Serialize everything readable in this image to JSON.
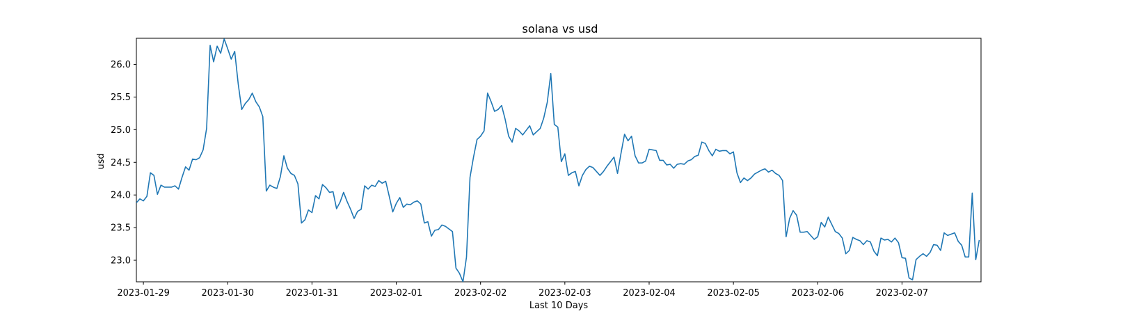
{
  "chart_data": {
    "type": "line",
    "title": "solana vs usd",
    "xlabel": "Last 10 Days",
    "ylabel": "usd",
    "x_start": "2023-01-29T00:00",
    "x_step_hours": 1,
    "xlim": [
      "2023-01-28T22:00",
      "2023-02-07T22:30"
    ],
    "ylim": [
      22.67,
      26.4
    ],
    "x_ticks": [
      "2023-01-29",
      "2023-01-30",
      "2023-01-31",
      "2023-02-01",
      "2023-02-02",
      "2023-02-03",
      "2023-02-04",
      "2023-02-05",
      "2023-02-06",
      "2023-02-07"
    ],
    "y_ticks": [
      "23.0",
      "23.5",
      "24.0",
      "24.5",
      "25.0",
      "25.5",
      "26.0"
    ],
    "grid": false,
    "line_color": "#1f77b4",
    "series": [
      {
        "x": [
          "2023-01-28T22:00",
          "2023-01-28T23:00",
          "2023-01-29T00:00",
          "2023-01-29T01:00",
          "2023-01-29T02:00",
          "2023-01-29T03:00",
          "2023-01-29T04:00",
          "2023-01-29T05:00",
          "2023-01-29T06:00",
          "2023-01-29T07:00",
          "2023-01-29T08:00",
          "2023-01-29T09:00",
          "2023-01-29T10:00",
          "2023-01-29T11:00",
          "2023-01-29T12:00",
          "2023-01-29T13:00",
          "2023-01-29T14:00",
          "2023-01-29T15:00",
          "2023-01-29T16:00",
          "2023-01-29T17:00",
          "2023-01-29T18:00",
          "2023-01-29T19:00",
          "2023-01-29T20:00",
          "2023-01-29T21:00",
          "2023-01-29T22:00",
          "2023-01-29T23:00",
          "2023-01-30T00:00",
          "2023-01-30T01:00",
          "2023-01-30T02:00",
          "2023-01-30T03:00",
          "2023-01-30T04:00",
          "2023-01-30T05:00",
          "2023-01-30T06:00",
          "2023-01-30T07:00",
          "2023-01-30T08:00",
          "2023-01-30T09:00",
          "2023-01-30T10:00",
          "2023-01-30T11:00",
          "2023-01-30T12:00",
          "2023-01-30T13:00",
          "2023-01-30T14:00",
          "2023-01-30T15:00",
          "2023-01-30T16:00",
          "2023-01-30T17:00",
          "2023-01-30T18:00",
          "2023-01-30T19:00",
          "2023-01-30T20:00",
          "2023-01-30T21:00",
          "2023-01-30T22:00",
          "2023-01-30T23:00",
          "2023-01-31T00:00",
          "2023-01-31T01:00",
          "2023-01-31T02:00",
          "2023-01-31T03:00",
          "2023-01-31T04:00",
          "2023-01-31T05:00",
          "2023-01-31T06:00",
          "2023-01-31T07:00",
          "2023-01-31T08:00",
          "2023-01-31T09:00",
          "2023-01-31T10:00",
          "2023-01-31T11:00",
          "2023-01-31T12:00",
          "2023-01-31T13:00",
          "2023-01-31T14:00",
          "2023-01-31T15:00",
          "2023-01-31T16:00",
          "2023-01-31T17:00",
          "2023-01-31T18:00",
          "2023-01-31T19:00",
          "2023-01-31T20:00",
          "2023-01-31T21:00",
          "2023-01-31T22:00",
          "2023-01-31T23:00",
          "2023-02-01T00:00",
          "2023-02-01T01:00",
          "2023-02-01T02:00",
          "2023-02-01T03:00",
          "2023-02-01T04:00",
          "2023-02-01T05:00",
          "2023-02-01T06:00",
          "2023-02-01T07:00",
          "2023-02-01T08:00",
          "2023-02-01T09:00",
          "2023-02-01T10:00",
          "2023-02-01T11:00",
          "2023-02-01T12:00",
          "2023-02-01T13:00",
          "2023-02-01T14:00",
          "2023-02-01T15:00",
          "2023-02-01T16:00",
          "2023-02-01T17:00",
          "2023-02-01T18:00",
          "2023-02-01T19:00",
          "2023-02-01T20:00",
          "2023-02-01T21:00",
          "2023-02-01T22:00",
          "2023-02-01T23:00",
          "2023-02-02T00:00",
          "2023-02-02T01:00",
          "2023-02-02T02:00",
          "2023-02-02T03:00",
          "2023-02-02T04:00",
          "2023-02-02T05:00",
          "2023-02-02T06:00",
          "2023-02-02T07:00",
          "2023-02-02T08:00",
          "2023-02-02T09:00",
          "2023-02-02T10:00",
          "2023-02-02T11:00",
          "2023-02-02T12:00",
          "2023-02-02T13:00",
          "2023-02-02T14:00",
          "2023-02-02T15:00",
          "2023-02-02T16:00",
          "2023-02-02T17:00",
          "2023-02-02T18:00",
          "2023-02-02T19:00",
          "2023-02-02T20:00",
          "2023-02-02T21:00",
          "2023-02-02T22:00",
          "2023-02-02T23:00",
          "2023-02-03T00:00",
          "2023-02-03T01:00",
          "2023-02-03T02:00",
          "2023-02-03T03:00",
          "2023-02-03T04:00",
          "2023-02-03T05:00",
          "2023-02-03T06:00",
          "2023-02-03T07:00",
          "2023-02-03T08:00",
          "2023-02-03T09:00",
          "2023-02-03T10:00",
          "2023-02-03T11:00",
          "2023-02-03T12:00",
          "2023-02-03T13:00",
          "2023-02-03T14:00",
          "2023-02-03T15:00",
          "2023-02-03T16:00",
          "2023-02-03T17:00",
          "2023-02-03T18:00",
          "2023-02-03T19:00",
          "2023-02-03T20:00",
          "2023-02-03T21:00",
          "2023-02-03T22:00",
          "2023-02-03T23:00",
          "2023-02-04T00:00",
          "2023-02-04T01:00",
          "2023-02-04T02:00",
          "2023-02-04T03:00",
          "2023-02-04T04:00",
          "2023-02-04T05:00",
          "2023-02-04T06:00",
          "2023-02-04T07:00",
          "2023-02-04T08:00",
          "2023-02-04T09:00",
          "2023-02-04T10:00",
          "2023-02-04T11:00",
          "2023-02-04T12:00",
          "2023-02-04T13:00",
          "2023-02-04T14:00",
          "2023-02-04T15:00",
          "2023-02-04T16:00",
          "2023-02-04T17:00",
          "2023-02-04T18:00",
          "2023-02-04T19:00",
          "2023-02-04T20:00",
          "2023-02-04T21:00",
          "2023-02-04T22:00",
          "2023-02-04T23:00",
          "2023-02-05T00:00",
          "2023-02-05T01:00",
          "2023-02-05T02:00",
          "2023-02-05T03:00",
          "2023-02-05T04:00",
          "2023-02-05T05:00",
          "2023-02-05T06:00",
          "2023-02-05T07:00",
          "2023-02-05T08:00",
          "2023-02-05T09:00",
          "2023-02-05T10:00",
          "2023-02-05T11:00",
          "2023-02-05T12:00",
          "2023-02-05T13:00",
          "2023-02-05T14:00",
          "2023-02-05T15:00",
          "2023-02-05T16:00",
          "2023-02-05T17:00",
          "2023-02-05T18:00",
          "2023-02-05T19:00",
          "2023-02-05T20:00",
          "2023-02-05T21:00",
          "2023-02-05T22:00",
          "2023-02-05T23:00",
          "2023-02-06T00:00",
          "2023-02-06T01:00",
          "2023-02-06T02:00",
          "2023-02-06T03:00",
          "2023-02-06T04:00",
          "2023-02-06T05:00",
          "2023-02-06T06:00",
          "2023-02-06T07:00",
          "2023-02-06T08:00",
          "2023-02-06T09:00",
          "2023-02-06T10:00",
          "2023-02-06T11:00",
          "2023-02-06T12:00",
          "2023-02-06T13:00",
          "2023-02-06T14:00",
          "2023-02-06T15:00",
          "2023-02-06T16:00",
          "2023-02-06T17:00",
          "2023-02-06T18:00",
          "2023-02-06T19:00",
          "2023-02-06T20:00",
          "2023-02-06T21:00",
          "2023-02-06T22:00",
          "2023-02-06T23:00",
          "2023-02-07T00:00",
          "2023-02-07T01:00",
          "2023-02-07T02:00",
          "2023-02-07T03:00",
          "2023-02-07T04:00",
          "2023-02-07T05:00",
          "2023-02-07T06:00",
          "2023-02-07T07:00",
          "2023-02-07T08:00",
          "2023-02-07T09:00",
          "2023-02-07T10:00",
          "2023-02-07T11:00",
          "2023-02-07T12:00",
          "2023-02-07T13:00",
          "2023-02-07T14:00",
          "2023-02-07T15:00",
          "2023-02-07T16:00",
          "2023-02-07T17:00",
          "2023-02-07T18:00",
          "2023-02-07T19:00",
          "2023-02-07T20:00",
          "2023-02-07T21:00",
          "2023-02-07T22:00"
        ],
        "values": [
          23.88,
          23.94,
          23.91,
          23.98,
          24.34,
          24.3,
          24.01,
          24.15,
          24.12,
          24.12,
          24.12,
          24.14,
          24.09,
          24.27,
          24.43,
          24.38,
          24.55,
          24.54,
          24.57,
          24.69,
          25.02,
          26.29,
          26.04,
          26.28,
          26.17,
          26.39,
          26.24,
          26.08,
          26.2,
          25.7,
          25.31,
          25.4,
          25.46,
          25.56,
          25.43,
          25.35,
          25.2,
          24.06,
          24.15,
          24.12,
          24.1,
          24.28,
          24.6,
          24.41,
          24.33,
          24.3,
          24.17,
          23.57,
          23.62,
          23.77,
          23.73,
          23.99,
          23.94,
          24.16,
          24.11,
          24.04,
          24.05,
          23.79,
          23.89,
          24.04,
          23.9,
          23.78,
          23.64,
          23.75,
          23.78,
          24.14,
          24.09,
          24.15,
          24.13,
          24.22,
          24.18,
          24.21,
          23.98,
          23.74,
          23.87,
          23.96,
          23.81,
          23.86,
          23.85,
          23.89,
          23.91,
          23.86,
          23.57,
          23.59,
          23.37,
          23.46,
          23.47,
          23.54,
          23.52,
          23.48,
          23.44,
          22.88,
          22.8,
          22.67,
          23.05,
          24.27,
          24.58,
          24.85,
          24.9,
          24.98,
          25.56,
          25.43,
          25.28,
          25.31,
          25.37,
          25.16,
          24.9,
          24.81,
          25.02,
          24.98,
          24.92,
          24.99,
          25.06,
          24.92,
          24.97,
          25.02,
          25.18,
          25.42,
          25.86,
          25.08,
          25.04,
          24.51,
          24.63,
          24.3,
          24.34,
          24.36,
          24.14,
          24.3,
          24.39,
          24.44,
          24.42,
          24.36,
          24.3,
          24.36,
          24.44,
          24.51,
          24.58,
          24.33,
          24.64,
          24.93,
          24.83,
          24.9,
          24.6,
          24.49,
          24.49,
          24.52,
          24.7,
          24.69,
          24.68,
          24.53,
          24.53,
          24.46,
          24.47,
          24.41,
          24.47,
          24.48,
          24.47,
          24.52,
          24.54,
          24.59,
          24.61,
          24.81,
          24.79,
          24.68,
          24.6,
          24.7,
          24.67,
          24.68,
          24.68,
          24.63,
          24.66,
          24.34,
          24.19,
          24.26,
          24.22,
          24.26,
          24.32,
          24.35,
          24.38,
          24.4,
          24.35,
          24.38,
          24.33,
          24.3,
          24.22,
          23.36,
          23.64,
          23.76,
          23.69,
          23.43,
          23.43,
          23.44,
          23.38,
          23.32,
          23.36,
          23.58,
          23.51,
          23.66,
          23.55,
          23.44,
          23.41,
          23.34,
          23.1,
          23.15,
          23.35,
          23.32,
          23.3,
          23.24,
          23.3,
          23.28,
          23.14,
          23.07,
          23.34,
          23.31,
          23.32,
          23.28,
          23.34,
          23.27,
          23.04,
          23.03,
          22.73,
          22.7,
          23.01,
          23.06,
          23.1,
          23.06,
          23.12,
          23.24,
          23.23,
          23.15,
          23.42,
          23.38,
          23.4,
          23.42,
          23.29,
          23.23,
          23.05,
          23.05,
          24.03,
          23.01,
          23.31
        ]
      }
    ]
  }
}
